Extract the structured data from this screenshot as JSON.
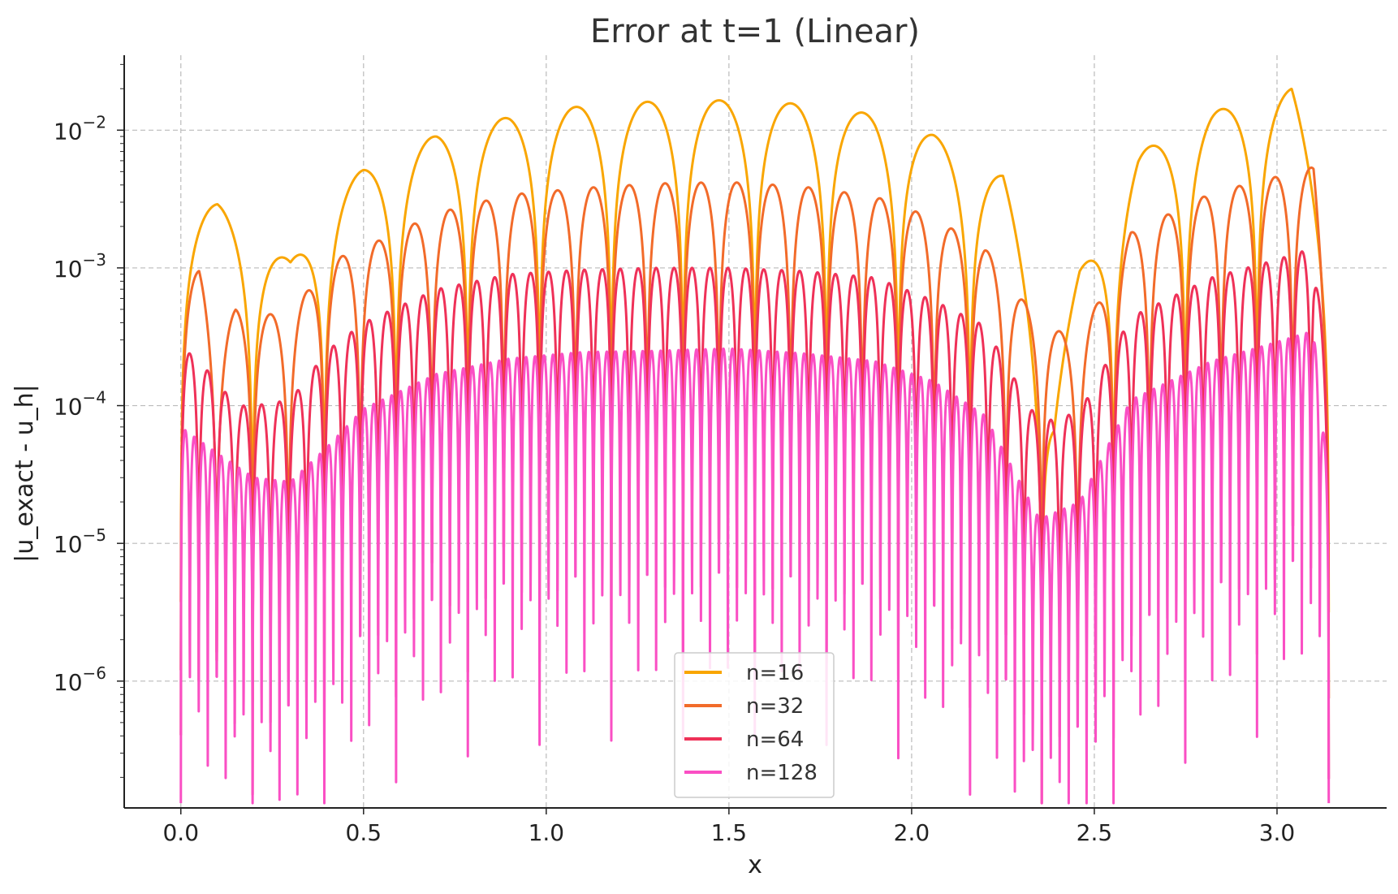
{
  "chart_data": {
    "type": "line",
    "title": "Error at t=1 (Linear)",
    "xlabel": "x",
    "ylabel": "|u_exact - u_h|",
    "xlim": [
      -0.155,
      3.3
    ],
    "ylim": [
      1.2e-07,
      0.035
    ],
    "y_scale": "log",
    "grid": true,
    "legend_position": "lower-center",
    "x_ticks": [
      {
        "value": 0.0,
        "label": "0.0"
      },
      {
        "value": 0.5,
        "label": "0.5"
      },
      {
        "value": 1.0,
        "label": "1.0"
      },
      {
        "value": 1.5,
        "label": "1.5"
      },
      {
        "value": 2.0,
        "label": "2.0"
      },
      {
        "value": 2.5,
        "label": "2.5"
      },
      {
        "value": 3.0,
        "label": "3.0"
      }
    ],
    "y_ticks": [
      {
        "value": 1e-06,
        "base": "10",
        "exp": "−6"
      },
      {
        "value": 1e-05,
        "base": "10",
        "exp": "−5"
      },
      {
        "value": 0.0001,
        "base": "10",
        "exp": "−4"
      },
      {
        "value": 0.001,
        "base": "10",
        "exp": "−3"
      },
      {
        "value": 0.01,
        "base": "10",
        "exp": "−2"
      }
    ],
    "series": [
      {
        "name": "n=16",
        "color": "#f9a602",
        "n": 16,
        "envelope": [
          [
            0.0,
            0.0025
          ],
          [
            0.1,
            0.0029
          ],
          [
            0.2,
            0.0019
          ],
          [
            0.3,
            0.0011
          ],
          [
            0.4,
            0.0032
          ],
          [
            0.5,
            0.0052
          ],
          [
            0.7,
            0.0092
          ],
          [
            0.9,
            0.0125
          ],
          [
            1.1,
            0.015
          ],
          [
            1.3,
            0.0162
          ],
          [
            1.5,
            0.0165
          ],
          [
            1.7,
            0.0155
          ],
          [
            1.9,
            0.013
          ],
          [
            2.06,
            0.0092
          ],
          [
            2.25,
            0.0047
          ],
          [
            2.39,
            0.00014
          ],
          [
            2.46,
            0.00095
          ],
          [
            2.62,
            0.0068
          ],
          [
            2.82,
            0.0135
          ],
          [
            3.04,
            0.02
          ],
          [
            3.14,
            0.0021
          ]
        ]
      },
      {
        "name": "n=32",
        "color": "#f26b2a",
        "n": 32,
        "envelope": [
          [
            0.0,
            0.0008
          ],
          [
            0.05,
            0.00095
          ],
          [
            0.1,
            0.00028
          ],
          [
            0.15,
            0.0005
          ],
          [
            0.2,
            0.00047
          ],
          [
            0.3,
            0.00045
          ],
          [
            0.4,
            0.0011
          ],
          [
            0.5,
            0.0014
          ],
          [
            0.7,
            0.0025
          ],
          [
            0.9,
            0.0034
          ],
          [
            1.1,
            0.0038
          ],
          [
            1.3,
            0.0041
          ],
          [
            1.5,
            0.0042
          ],
          [
            1.7,
            0.0039
          ],
          [
            1.9,
            0.0033
          ],
          [
            2.06,
            0.0023
          ],
          [
            2.2,
            0.0014
          ],
          [
            2.35,
            0.0004
          ],
          [
            2.46,
            0.0003
          ],
          [
            2.6,
            0.0018
          ],
          [
            2.82,
            0.0035
          ],
          [
            3.0,
            0.0046
          ],
          [
            3.1,
            0.0054
          ],
          [
            3.14,
            0.0005
          ]
        ]
      },
      {
        "name": "n=64",
        "color": "#ef3158",
        "n": 64,
        "envelope": [
          [
            0.0,
            0.00027
          ],
          [
            0.05,
            0.00021
          ],
          [
            0.1,
            0.00015
          ],
          [
            0.15,
            0.0001
          ],
          [
            0.2,
            0.0001
          ],
          [
            0.3,
            0.00011
          ],
          [
            0.4,
            0.00025
          ],
          [
            0.5,
            0.0004
          ],
          [
            0.7,
            0.0007
          ],
          [
            0.9,
            0.0009
          ],
          [
            1.1,
            0.00097
          ],
          [
            1.3,
            0.001
          ],
          [
            1.5,
            0.001
          ],
          [
            1.7,
            0.00095
          ],
          [
            1.9,
            0.00085
          ],
          [
            2.06,
            0.00058
          ],
          [
            2.2,
            0.00038
          ],
          [
            2.35,
            7.5e-05
          ],
          [
            2.46,
            9e-05
          ],
          [
            2.6,
            0.00044
          ],
          [
            2.82,
            0.00085
          ],
          [
            3.0,
            0.00115
          ],
          [
            3.1,
            0.0014
          ],
          [
            3.14,
            0.00013
          ]
        ]
      },
      {
        "name": "n=128",
        "color": "#fa4fc4",
        "n": 128,
        "envelope": [
          [
            0.0,
            7e-05
          ],
          [
            0.1,
            4.5e-05
          ],
          [
            0.2,
            3e-05
          ],
          [
            0.3,
            2.8e-05
          ],
          [
            0.4,
            5e-05
          ],
          [
            0.5,
            9.5e-05
          ],
          [
            0.7,
            0.00017
          ],
          [
            0.9,
            0.00022
          ],
          [
            1.1,
            0.000245
          ],
          [
            1.3,
            0.00025
          ],
          [
            1.5,
            0.00026
          ],
          [
            1.7,
            0.00024
          ],
          [
            1.9,
            0.00021
          ],
          [
            2.06,
            0.00015
          ],
          [
            2.2,
            8.5e-05
          ],
          [
            2.35,
            1.5e-05
          ],
          [
            2.46,
            2e-05
          ],
          [
            2.6,
            0.00011
          ],
          [
            2.82,
            0.00021
          ],
          [
            3.0,
            0.00029
          ],
          [
            3.1,
            0.00035
          ],
          [
            3.14,
            3e-05
          ]
        ]
      }
    ]
  }
}
